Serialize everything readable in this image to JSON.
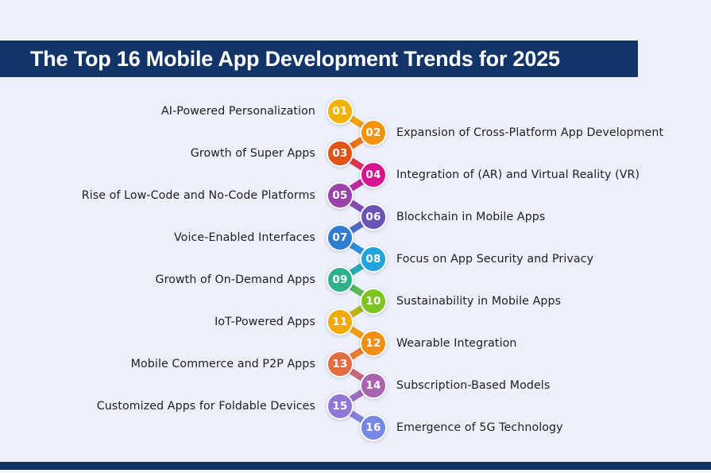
{
  "page": {
    "background": "#EDF0FA",
    "accent_navy": "#123569"
  },
  "header": {
    "title": "The Top 16 Mobile App Development Trends for 2025",
    "bg_color": "#123569",
    "text_color": "#FFFFFF"
  },
  "footer": {
    "bar_color": "#123569"
  },
  "trends": [
    {
      "number": "01",
      "label": "AI-Powered Personalization",
      "side": "left",
      "color": "#F1B207"
    },
    {
      "number": "02",
      "label": "Expansion of Cross-Platform App Development",
      "side": "right",
      "color": "#F3930D"
    },
    {
      "number": "03",
      "label": "Growth of Super Apps",
      "side": "left",
      "color": "#E35414"
    },
    {
      "number": "04",
      "label": "Integration of (AR) and Virtual Reality (VR)",
      "side": "right",
      "color": "#D81390"
    },
    {
      "number": "05",
      "label": "Rise of Low-Code and No-Code Platforms",
      "side": "left",
      "color": "#9C42AB"
    },
    {
      "number": "06",
      "label": "Blockchain in Mobile Apps",
      "side": "right",
      "color": "#6A53B6"
    },
    {
      "number": "07",
      "label": "Voice-Enabled Interfaces",
      "side": "left",
      "color": "#2F7DD0"
    },
    {
      "number": "08",
      "label": "Focus on App Security and Privacy",
      "side": "right",
      "color": "#21A3DE"
    },
    {
      "number": "09",
      "label": "Growth of On-Demand Apps",
      "side": "left",
      "color": "#30B089"
    },
    {
      "number": "10",
      "label": "Sustainability in Mobile Apps",
      "side": "right",
      "color": "#7CC41F"
    },
    {
      "number": "11",
      "label": "IoT-Powered Apps",
      "side": "left",
      "color": "#F3A908"
    },
    {
      "number": "12",
      "label": "Wearable Integration",
      "side": "right",
      "color": "#F28E14"
    },
    {
      "number": "13",
      "label": "Mobile Commerce and P2P Apps",
      "side": "left",
      "color": "#E76B41"
    },
    {
      "number": "14",
      "label": "Subscription-Based Models",
      "side": "right",
      "color": "#AA63AE"
    },
    {
      "number": "15",
      "label": "Customized Apps for Foldable Devices",
      "side": "left",
      "color": "#9377D8"
    },
    {
      "number": "16",
      "label": "Emergence of 5G Technology",
      "side": "right",
      "color": "#7787E6"
    }
  ]
}
